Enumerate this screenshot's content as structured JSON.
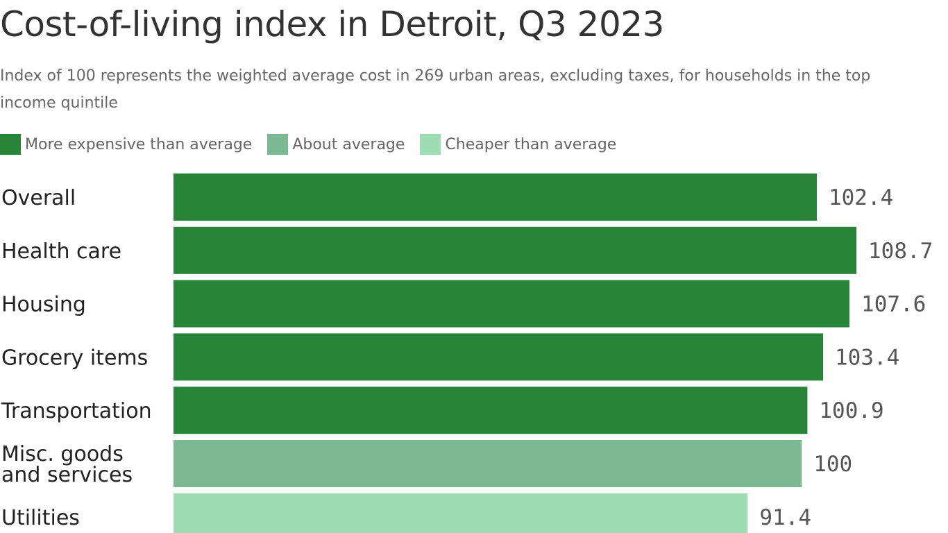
{
  "chart_data": {
    "type": "bar",
    "orientation": "horizontal",
    "title": "Cost-of-living index in Detroit, Q3 2023",
    "subtitle": "Index of 100 represents the weighted average cost in 269 urban areas, excluding taxes, for households in the top income quintile",
    "categories": [
      [
        "Overall"
      ],
      [
        "Health care"
      ],
      [
        "Housing"
      ],
      [
        "Grocery items"
      ],
      [
        "Transportation"
      ],
      [
        "Misc. goods",
        "and services"
      ],
      [
        "Utilities"
      ]
    ],
    "values": [
      102.4,
      108.7,
      107.6,
      103.4,
      100.9,
      100,
      91.4
    ],
    "value_labels": [
      "102.4",
      "108.7",
      "107.6",
      "103.4",
      "100.9",
      "100",
      "91.4"
    ],
    "groups": [
      "more",
      "more",
      "more",
      "more",
      "more",
      "about",
      "cheaper"
    ],
    "legend": [
      {
        "key": "more",
        "label": "More expensive than average",
        "color": "#278438"
      },
      {
        "key": "about",
        "label": "About average",
        "color": "#7db894"
      },
      {
        "key": "cheaper",
        "label": "Cheaper than average",
        "color": "#9edcb4"
      }
    ],
    "xlim": [
      0,
      108.7
    ],
    "grid": false,
    "legend_position": "top-left"
  }
}
